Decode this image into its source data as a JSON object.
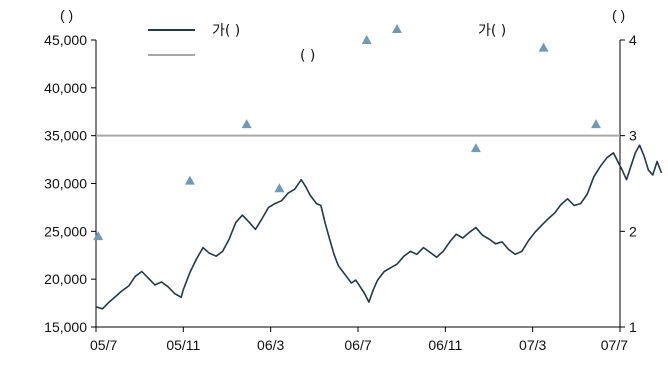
{
  "chart_data": {
    "type": "line",
    "left_axis_unit": "( )",
    "right_axis_unit": "( )",
    "legend": {
      "price_label": "가(      )",
      "target_label": "가(      )",
      "reference_label": "",
      "reference_sub": "(      )"
    },
    "x_ticks": [
      "05/7",
      "05/11",
      "06/3",
      "06/7",
      "06/11",
      "07/3",
      "07/7"
    ],
    "y_left": {
      "min": 15000,
      "max": 45000,
      "ticks": [
        "15,000",
        "20,000",
        "25,000",
        "30,000",
        "35,000",
        "40,000",
        "45,000"
      ]
    },
    "y_right": {
      "min": 1,
      "max": 4,
      "ticks": [
        "1",
        "2",
        "3",
        "4"
      ]
    },
    "reference_line_right": 3,
    "series": [
      {
        "kind": "line",
        "axis": "left",
        "color": "#1f3a4d",
        "points": [
          [
            0.0,
            17100
          ],
          [
            0.3,
            16900
          ],
          [
            0.6,
            17600
          ],
          [
            0.9,
            18200
          ],
          [
            1.2,
            18800
          ],
          [
            1.5,
            19300
          ],
          [
            1.8,
            20300
          ],
          [
            2.1,
            20800
          ],
          [
            2.4,
            20100
          ],
          [
            2.7,
            19400
          ],
          [
            3.0,
            19700
          ],
          [
            3.3,
            19200
          ],
          [
            3.6,
            18500
          ],
          [
            3.9,
            18100
          ],
          [
            4.0,
            18900
          ],
          [
            4.3,
            20700
          ],
          [
            4.6,
            22100
          ],
          [
            4.9,
            23300
          ],
          [
            5.2,
            22700
          ],
          [
            5.5,
            22400
          ],
          [
            5.8,
            22900
          ],
          [
            6.1,
            24200
          ],
          [
            6.4,
            25900
          ],
          [
            6.7,
            26700
          ],
          [
            7.0,
            26000
          ],
          [
            7.3,
            25200
          ],
          [
            7.6,
            26300
          ],
          [
            7.9,
            27500
          ],
          [
            8.2,
            27900
          ],
          [
            8.5,
            28200
          ],
          [
            8.8,
            29000
          ],
          [
            9.1,
            29400
          ],
          [
            9.4,
            30400
          ],
          [
            9.6,
            29700
          ],
          [
            9.8,
            28800
          ],
          [
            10.1,
            27900
          ],
          [
            10.3,
            27700
          ],
          [
            10.5,
            25800
          ],
          [
            10.7,
            24200
          ],
          [
            10.9,
            22600
          ],
          [
            11.1,
            21400
          ],
          [
            11.3,
            20800
          ],
          [
            11.5,
            20200
          ],
          [
            11.7,
            19600
          ],
          [
            11.9,
            19900
          ],
          [
            12.1,
            19200
          ],
          [
            12.3,
            18500
          ],
          [
            12.5,
            17600
          ],
          [
            12.7,
            18900
          ],
          [
            12.9,
            19900
          ],
          [
            13.2,
            20800
          ],
          [
            13.5,
            21200
          ],
          [
            13.8,
            21600
          ],
          [
            14.1,
            22400
          ],
          [
            14.4,
            22900
          ],
          [
            14.7,
            22600
          ],
          [
            15.0,
            23300
          ],
          [
            15.3,
            22800
          ],
          [
            15.6,
            22300
          ],
          [
            15.9,
            22900
          ],
          [
            16.2,
            23900
          ],
          [
            16.5,
            24700
          ],
          [
            16.8,
            24300
          ],
          [
            17.1,
            24900
          ],
          [
            17.4,
            25400
          ],
          [
            17.7,
            24600
          ],
          [
            18.0,
            24200
          ],
          [
            18.3,
            23700
          ],
          [
            18.6,
            23900
          ],
          [
            18.9,
            23100
          ],
          [
            19.2,
            22600
          ],
          [
            19.5,
            22900
          ],
          [
            19.8,
            24000
          ],
          [
            20.1,
            24900
          ],
          [
            20.4,
            25600
          ],
          [
            20.7,
            26300
          ],
          [
            21.0,
            26900
          ],
          [
            21.3,
            27800
          ],
          [
            21.6,
            28400
          ],
          [
            21.9,
            27700
          ],
          [
            22.2,
            27900
          ],
          [
            22.5,
            28900
          ],
          [
            22.8,
            30700
          ],
          [
            23.1,
            31800
          ],
          [
            23.4,
            32700
          ],
          [
            23.7,
            33200
          ],
          [
            23.9,
            32300
          ],
          [
            24.1,
            31400
          ],
          [
            24.3,
            30400
          ],
          [
            24.5,
            31800
          ],
          [
            24.7,
            33200
          ],
          [
            24.9,
            34000
          ],
          [
            25.1,
            32900
          ],
          [
            25.3,
            31400
          ],
          [
            25.5,
            30900
          ],
          [
            25.7,
            32300
          ],
          [
            25.9,
            31100
          ]
        ]
      },
      {
        "kind": "marker",
        "axis": "right",
        "color": "#6f9bb8",
        "points": [
          [
            0.1,
            1.95
          ],
          [
            4.3,
            2.53
          ],
          [
            6.9,
            3.12
          ],
          [
            8.4,
            2.45
          ],
          [
            12.4,
            4.0
          ],
          [
            17.4,
            2.87
          ],
          [
            20.5,
            3.92
          ],
          [
            22.9,
            3.12
          ]
        ]
      }
    ]
  }
}
